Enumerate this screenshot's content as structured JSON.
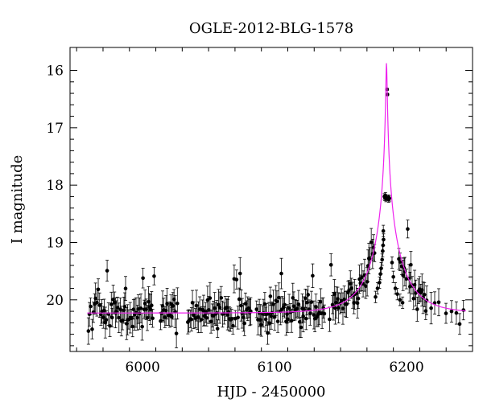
{
  "chart_data": {
    "type": "scatter",
    "title": "OGLE-2012-BLG-1578",
    "xlabel": "HJD - 2450000",
    "ylabel": "I magnitude",
    "xlim": [
      5945,
      6250
    ],
    "ylim": [
      20.9,
      15.6
    ],
    "y_inverted": true,
    "grid": false,
    "legend": "none",
    "x_ticks": [
      6000,
      6100,
      6200
    ],
    "y_ticks": [
      16,
      17,
      18,
      19,
      20
    ],
    "colors": {
      "points": "#000000",
      "model": "#ee22ee",
      "axes": "#000000"
    },
    "baseline_magnitude": 20.22,
    "baseline_scatter": 0.22,
    "observation_range": [
      5958,
      6245
    ],
    "peak_points": [
      {
        "x": 6185.2,
        "y": 16.33
      },
      {
        "x": 6185.5,
        "y": 16.42
      },
      {
        "x": 6183.2,
        "y": 18.2
      },
      {
        "x": 6183.6,
        "y": 18.22
      },
      {
        "x": 6184.0,
        "y": 18.18
      },
      {
        "x": 6184.4,
        "y": 18.24
      },
      {
        "x": 6186.0,
        "y": 18.22
      },
      {
        "x": 6186.5,
        "y": 18.25
      },
      {
        "x": 6187.0,
        "y": 18.23
      },
      {
        "x": 6182.4,
        "y": 18.8
      },
      {
        "x": 6182.6,
        "y": 18.95
      },
      {
        "x": 6182.2,
        "y": 19.05
      },
      {
        "x": 6181.9,
        "y": 19.15
      },
      {
        "x": 6181.5,
        "y": 19.3
      },
      {
        "x": 6180.8,
        "y": 19.45
      },
      {
        "x": 6180.2,
        "y": 19.55
      },
      {
        "x": 6179.5,
        "y": 19.7
      },
      {
        "x": 6178.0,
        "y": 19.8
      },
      {
        "x": 6176.5,
        "y": 19.95
      },
      {
        "x": 6189.0,
        "y": 19.35
      },
      {
        "x": 6190.0,
        "y": 19.6
      },
      {
        "x": 6191.5,
        "y": 19.8
      },
      {
        "x": 6193.0,
        "y": 19.9
      },
      {
        "x": 6195.0,
        "y": 20.0
      },
      {
        "x": 6197.0,
        "y": 20.05
      }
    ],
    "model_curve": {
      "t0": 6184.8,
      "u0": 0.018,
      "tE": 25.0,
      "baseline": 20.23
    }
  }
}
